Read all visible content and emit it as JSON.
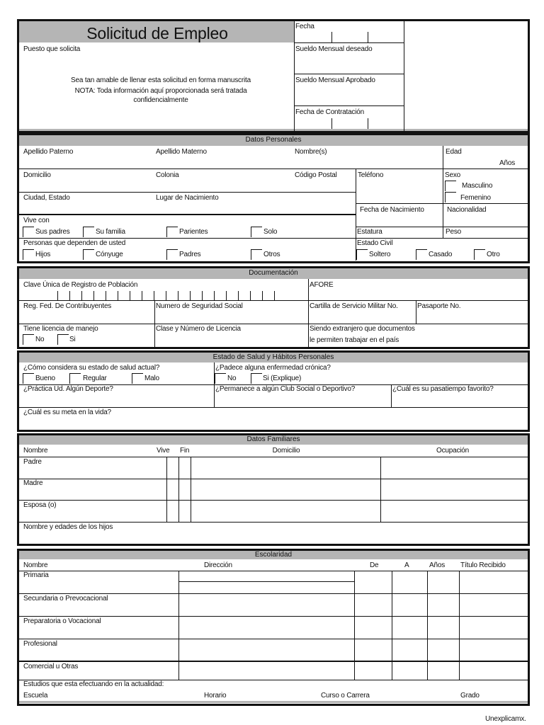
{
  "header": {
    "title": "Solicitud de Empleo",
    "fecha": "Fecha",
    "puesto": "Puesto que solicita",
    "instructions": [
      "Sea tan amable de llenar esta solicitud en forma manuscrita",
      "NOTA: Toda información aquí proporcionada será tratada",
      "confidencialmente"
    ],
    "sueldo_deseado": "Sueldo Mensual deseado",
    "sueldo_aprobado": "Sueldo Mensual Aprobado",
    "fecha_contratacion": "Fecha de Contratación"
  },
  "personal": {
    "band": "Datos Personales",
    "apellido_paterno": "Apellido Paterno",
    "apellido_materno": "Apellido Materno",
    "nombres": "Nombre(s)",
    "edad": "Edad",
    "anos": "Años",
    "domicilio": "Domicilio",
    "colonia": "Colonia",
    "codigo_postal": "Código Postal",
    "telefono": "Teléfono",
    "sexo": "Sexo",
    "masculino": "Masculino",
    "femenino": "Femenino",
    "ciudad": "Ciudad, Estado",
    "lugar_nacimiento": "Lugar de Nacimiento",
    "fecha_nacimiento": "Fecha de Nacimiento",
    "nacionalidad": "Nacionalidad",
    "vive_con": "Vive con",
    "vive_opts": [
      "Sus padres",
      "Su familia",
      "Parientes",
      "Solo"
    ],
    "estatura": "Estatura",
    "peso": "Peso",
    "dependientes": "Personas que dependen de usted",
    "dep_opts": [
      "Hijos",
      "Cónyuge",
      "Padres",
      "Otros"
    ],
    "estado_civil": "Estado Civil",
    "civil_opts": [
      "Soltero",
      "Casado",
      "Otro"
    ]
  },
  "docs": {
    "band": "Documentación",
    "curp": "Clave Única de Registro de Población",
    "afore": "AFORE",
    "rfc": "Reg. Fed. De Contribuyentes",
    "nss": "Numero de Seguridad Social",
    "cartilla": "Cartilla de Servicio Militar No.",
    "pasaporte": "Pasaporte No.",
    "licencia": "Tiene licencia de manejo",
    "lic_no": "No",
    "lic_si": "Si",
    "clase": "Clase y Número de Licencia",
    "extranjero_1": "Siendo extranjero que documentos",
    "extranjero_2": "le permiten trabajar en el país"
  },
  "salud": {
    "band": "Estado de Salud y Hábitos Personales",
    "estado": "¿Cómo considera su estado de salud actual?",
    "estado_opts": [
      "Bueno",
      "Regular",
      "Malo"
    ],
    "cronica": "¿Padece alguna enfermedad crónica?",
    "cronica_opts": [
      "No",
      "Si (Explique)"
    ],
    "deporte": "¿Práctica Ud. Algún Deporte?",
    "club": "¿Permanece a algún Club Social o Deportivo?",
    "pasatiempo": "¿Cuál es su pasatiempo favorito?",
    "meta": "¿Cuál es su meta en la vida?"
  },
  "familia": {
    "band": "Datos Familiares",
    "cols": [
      "Nombre",
      "Vive",
      "Fin",
      "Domicilio",
      "Ocupación"
    ],
    "rows": [
      "Padre",
      "Madre",
      "Esposa (o)",
      "Nombre y edades de los hijos"
    ]
  },
  "escolaridad": {
    "band": "Escolaridad",
    "cols": [
      "Nombre",
      "Dirección",
      "De",
      "A",
      "Años",
      "Título Recibido"
    ],
    "rows": [
      "Primaria",
      "Secundaria o Prevocacional",
      "Preparatoria o Vocacional",
      "Profesional",
      "Comercial u Otras"
    ],
    "actual": "Estudios que esta efectuando en la actualidad:",
    "actual_cols": [
      "Escuela",
      "Horario",
      "Curso o Carrera",
      "Grado"
    ]
  },
  "footer": "Unexplicamx."
}
